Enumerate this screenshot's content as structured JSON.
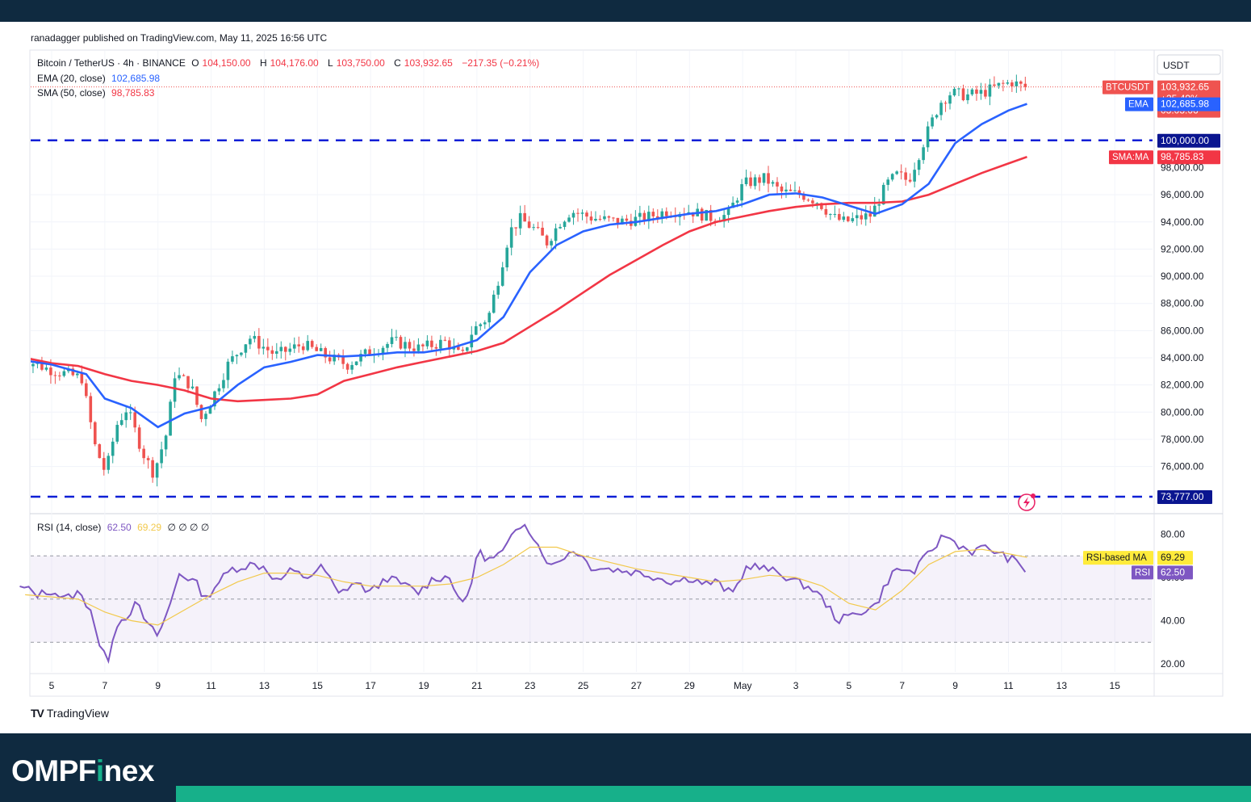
{
  "header": {
    "published_by": "ranadagger published on TradingView.com, May 11, 2025 16:56 UTC"
  },
  "legend": {
    "symbol": "Bitcoin / TetherUS · 4h · BINANCE",
    "open_label": "O",
    "open": "104,150.00",
    "high_label": "H",
    "high": "104,176.00",
    "low_label": "L",
    "low": "103,750.00",
    "close_label": "C",
    "close": "103,932.65",
    "change": "−217.35 (−0.21%)",
    "ema_label": "EMA (20, close)",
    "ema_value": "102,685.98",
    "sma_label": "SMA (50, close)",
    "sma_value": "98,785.83",
    "rsi_label": "RSI (14, close)",
    "rsi_value": "62.50",
    "rsi_ma_value": "69.29",
    "rsi_extra": "∅ ∅ ∅ ∅"
  },
  "price_axis": {
    "currency_label": "USDT",
    "ticks": [
      "96,000.00",
      "94,000.00",
      "92,000.00",
      "90,000.00",
      "88,000.00",
      "86,000.00",
      "84,000.00",
      "82,000.00",
      "80,000.00",
      "78,000.00",
      "76,000.00"
    ],
    "tick_values": [
      96000,
      94000,
      92000,
      90000,
      88000,
      86000,
      84000,
      82000,
      80000,
      78000,
      76000
    ],
    "hidden_tick": "98,000.00",
    "symbol_tag": "BTCUSDT",
    "price_tag": "103,932.65",
    "change_tag": "+25.49%",
    "countdown_tag": "03:03:06",
    "ema_tag_label": "EMA",
    "ema_tag_value": "102,685.98",
    "level_100k": "100,000.00",
    "sma_tag_label": "SMA:MA",
    "sma_tag_value": "98,785.83",
    "level_73k": "73,777.00"
  },
  "rsi_axis": {
    "ticks": [
      "80.00",
      "40.00",
      "20.00"
    ],
    "tick_values": [
      80,
      40,
      20
    ],
    "hidden_tick": "60.00",
    "ma_tag_label": "RSI-based MA",
    "ma_tag_value": "69.29",
    "rsi_tag_label": "RSI",
    "rsi_tag_value": "62.50"
  },
  "time_axis": {
    "labels": [
      "5",
      "7",
      "9",
      "11",
      "13",
      "15",
      "17",
      "19",
      "21",
      "23",
      "25",
      "27",
      "29",
      "May",
      "3",
      "5",
      "7",
      "9",
      "11",
      "13",
      "15"
    ]
  },
  "colors": {
    "up": "#26a69a",
    "down": "#ef5350",
    "ema": "#2962ff",
    "sma": "#f23645",
    "level_line": "#0d1fd6",
    "rsi": "#7e57c2",
    "rsi_ma": "#f2c94c",
    "brand_bg": "#0f2a40",
    "brand_accent": "#17b08a"
  },
  "chart_data": {
    "type": "candlestick",
    "title": "Bitcoin / TetherUS · 4h · BINANCE",
    "timeframe": "4h",
    "x_labels": [
      "5",
      "7",
      "9",
      "11",
      "13",
      "15",
      "17",
      "19",
      "21",
      "23",
      "25",
      "27",
      "29",
      "May",
      "3",
      "5",
      "7",
      "9",
      "11",
      "13",
      "15"
    ],
    "ohlc_last": {
      "open": 104150.0,
      "high": 104176.0,
      "low": 103750.0,
      "close": 103932.65
    },
    "price_anchors": [
      {
        "day": 4.0,
        "price": 84000
      },
      {
        "day": 5.0,
        "price": 83200
      },
      {
        "day": 6.3,
        "price": 82500
      },
      {
        "day": 6.8,
        "price": 77500
      },
      {
        "day": 7.2,
        "price": 75500
      },
      {
        "day": 7.6,
        "price": 79000
      },
      {
        "day": 8.0,
        "price": 80300
      },
      {
        "day": 8.6,
        "price": 77000
      },
      {
        "day": 9.0,
        "price": 75500
      },
      {
        "day": 9.5,
        "price": 78500
      },
      {
        "day": 9.8,
        "price": 82800
      },
      {
        "day": 10.4,
        "price": 82000
      },
      {
        "day": 10.8,
        "price": 79500
      },
      {
        "day": 11.2,
        "price": 81000
      },
      {
        "day": 11.8,
        "price": 83500
      },
      {
        "day": 12.6,
        "price": 85500
      },
      {
        "day": 13.6,
        "price": 84200
      },
      {
        "day": 14.6,
        "price": 85000
      },
      {
        "day": 15.6,
        "price": 84000
      },
      {
        "day": 16.3,
        "price": 83500
      },
      {
        "day": 17.0,
        "price": 84300
      },
      {
        "day": 18.0,
        "price": 85200
      },
      {
        "day": 19.0,
        "price": 84700
      },
      {
        "day": 20.0,
        "price": 85200
      },
      {
        "day": 20.6,
        "price": 84000
      },
      {
        "day": 21.0,
        "price": 86000
      },
      {
        "day": 21.6,
        "price": 87000
      },
      {
        "day": 22.0,
        "price": 90000
      },
      {
        "day": 22.4,
        "price": 93300
      },
      {
        "day": 22.8,
        "price": 94200
      },
      {
        "day": 23.3,
        "price": 93500
      },
      {
        "day": 23.8,
        "price": 92500
      },
      {
        "day": 24.3,
        "price": 94000
      },
      {
        "day": 24.7,
        "price": 94800
      },
      {
        "day": 25.5,
        "price": 94300
      },
      {
        "day": 26.5,
        "price": 94000
      },
      {
        "day": 27.5,
        "price": 94300
      },
      {
        "day": 28.3,
        "price": 94800
      },
      {
        "day": 29.2,
        "price": 94800
      },
      {
        "day": 30.0,
        "price": 94300
      },
      {
        "day": 30.6,
        "price": 94500
      },
      {
        "day": 31.2,
        "price": 96800
      },
      {
        "day": 32.0,
        "price": 97200
      },
      {
        "day": 32.6,
        "price": 96200
      },
      {
        "day": 33.4,
        "price": 96000
      },
      {
        "day": 34.0,
        "price": 95500
      },
      {
        "day": 34.6,
        "price": 94300
      },
      {
        "day": 35.0,
        "price": 94000
      },
      {
        "day": 35.6,
        "price": 94300
      },
      {
        "day": 36.0,
        "price": 94500
      },
      {
        "day": 36.6,
        "price": 96800
      },
      {
        "day": 37.0,
        "price": 97500
      },
      {
        "day": 37.4,
        "price": 97000
      },
      {
        "day": 37.8,
        "price": 99000
      },
      {
        "day": 38.2,
        "price": 101000
      },
      {
        "day": 38.6,
        "price": 102800
      },
      {
        "day": 39.0,
        "price": 103500
      },
      {
        "day": 39.6,
        "price": 103300
      },
      {
        "day": 40.2,
        "price": 103500
      },
      {
        "day": 40.8,
        "price": 104000
      },
      {
        "day": 41.3,
        "price": 104300
      },
      {
        "day": 41.7,
        "price": 103932
      }
    ],
    "ema_20": [
      {
        "day": 4.0,
        "price": 83800
      },
      {
        "day": 5.0,
        "price": 83500
      },
      {
        "day": 6.3,
        "price": 82800
      },
      {
        "day": 7.0,
        "price": 81000
      },
      {
        "day": 8.0,
        "price": 80300
      },
      {
        "day": 9.0,
        "price": 78900
      },
      {
        "day": 10.0,
        "price": 79900
      },
      {
        "day": 11.0,
        "price": 80400
      },
      {
        "day": 12.0,
        "price": 82000
      },
      {
        "day": 13.0,
        "price": 83300
      },
      {
        "day": 14.0,
        "price": 83700
      },
      {
        "day": 15.0,
        "price": 84200
      },
      {
        "day": 16.0,
        "price": 84100
      },
      {
        "day": 17.0,
        "price": 84200
      },
      {
        "day": 18.0,
        "price": 84400
      },
      {
        "day": 19.0,
        "price": 84400
      },
      {
        "day": 20.0,
        "price": 84700
      },
      {
        "day": 21.0,
        "price": 85300
      },
      {
        "day": 22.0,
        "price": 87000
      },
      {
        "day": 23.0,
        "price": 90300
      },
      {
        "day": 24.0,
        "price": 92300
      },
      {
        "day": 25.0,
        "price": 93300
      },
      {
        "day": 26.0,
        "price": 93800
      },
      {
        "day": 27.0,
        "price": 94000
      },
      {
        "day": 28.0,
        "price": 94300
      },
      {
        "day": 29.0,
        "price": 94600
      },
      {
        "day": 30.0,
        "price": 94800
      },
      {
        "day": 31.0,
        "price": 95300
      },
      {
        "day": 32.0,
        "price": 96000
      },
      {
        "day": 33.0,
        "price": 96100
      },
      {
        "day": 34.0,
        "price": 95800
      },
      {
        "day": 35.0,
        "price": 95200
      },
      {
        "day": 36.0,
        "price": 94600
      },
      {
        "day": 37.0,
        "price": 95300
      },
      {
        "day": 38.0,
        "price": 96800
      },
      {
        "day": 39.0,
        "price": 99800
      },
      {
        "day": 40.0,
        "price": 101200
      },
      {
        "day": 41.0,
        "price": 102200
      },
      {
        "day": 41.7,
        "price": 102686
      }
    ],
    "sma_50": [
      {
        "day": 4.0,
        "price": 84000
      },
      {
        "day": 5.0,
        "price": 83600
      },
      {
        "day": 6.0,
        "price": 83400
      },
      {
        "day": 7.0,
        "price": 82800
      },
      {
        "day": 8.0,
        "price": 82300
      },
      {
        "day": 9.0,
        "price": 82000
      },
      {
        "day": 10.0,
        "price": 81600
      },
      {
        "day": 11.0,
        "price": 81000
      },
      {
        "day": 12.0,
        "price": 80800
      },
      {
        "day": 13.0,
        "price": 80900
      },
      {
        "day": 14.0,
        "price": 81000
      },
      {
        "day": 15.0,
        "price": 81300
      },
      {
        "day": 16.0,
        "price": 82300
      },
      {
        "day": 17.0,
        "price": 82800
      },
      {
        "day": 18.0,
        "price": 83300
      },
      {
        "day": 19.0,
        "price": 83700
      },
      {
        "day": 20.0,
        "price": 84100
      },
      {
        "day": 21.0,
        "price": 84500
      },
      {
        "day": 22.0,
        "price": 85100
      },
      {
        "day": 23.0,
        "price": 86300
      },
      {
        "day": 24.0,
        "price": 87500
      },
      {
        "day": 25.0,
        "price": 88800
      },
      {
        "day": 26.0,
        "price": 90100
      },
      {
        "day": 27.0,
        "price": 91200
      },
      {
        "day": 28.0,
        "price": 92300
      },
      {
        "day": 29.0,
        "price": 93300
      },
      {
        "day": 30.0,
        "price": 94000
      },
      {
        "day": 31.0,
        "price": 94400
      },
      {
        "day": 32.0,
        "price": 94800
      },
      {
        "day": 33.0,
        "price": 95100
      },
      {
        "day": 34.0,
        "price": 95300
      },
      {
        "day": 35.0,
        "price": 95400
      },
      {
        "day": 36.0,
        "price": 95400
      },
      {
        "day": 37.0,
        "price": 95500
      },
      {
        "day": 38.0,
        "price": 96000
      },
      {
        "day": 39.0,
        "price": 96800
      },
      {
        "day": 40.0,
        "price": 97600
      },
      {
        "day": 41.0,
        "price": 98300
      },
      {
        "day": 41.7,
        "price": 98786
      }
    ],
    "horizontal_levels": [
      100000,
      73777
    ],
    "rsi_anchors": [
      {
        "day": 4.0,
        "val": 55
      },
      {
        "day": 4.5,
        "val": 52
      },
      {
        "day": 5.0,
        "val": 54
      },
      {
        "day": 5.5,
        "val": 50
      },
      {
        "day": 6.0,
        "val": 53
      },
      {
        "day": 6.5,
        "val": 45
      },
      {
        "day": 6.8,
        "val": 28
      },
      {
        "day": 7.1,
        "val": 21
      },
      {
        "day": 7.4,
        "val": 38
      },
      {
        "day": 7.8,
        "val": 42
      },
      {
        "day": 8.2,
        "val": 48
      },
      {
        "day": 8.6,
        "val": 38
      },
      {
        "day": 9.0,
        "val": 33
      },
      {
        "day": 9.4,
        "val": 45
      },
      {
        "day": 9.8,
        "val": 62
      },
      {
        "day": 10.4,
        "val": 58
      },
      {
        "day": 10.8,
        "val": 50
      },
      {
        "day": 11.2,
        "val": 57
      },
      {
        "day": 11.8,
        "val": 64
      },
      {
        "day": 12.5,
        "val": 66
      },
      {
        "day": 13.0,
        "val": 65
      },
      {
        "day": 13.5,
        "val": 58
      },
      {
        "day": 14.0,
        "val": 63
      },
      {
        "day": 14.6,
        "val": 60
      },
      {
        "day": 15.2,
        "val": 65
      },
      {
        "day": 15.8,
        "val": 52
      },
      {
        "day": 16.4,
        "val": 58
      },
      {
        "day": 17.0,
        "val": 53
      },
      {
        "day": 17.6,
        "val": 60
      },
      {
        "day": 18.2,
        "val": 57
      },
      {
        "day": 18.8,
        "val": 53
      },
      {
        "day": 19.4,
        "val": 60
      },
      {
        "day": 20.0,
        "val": 60
      },
      {
        "day": 20.5,
        "val": 46
      },
      {
        "day": 20.8,
        "val": 58
      },
      {
        "day": 21.0,
        "val": 72
      },
      {
        "day": 21.5,
        "val": 68
      },
      {
        "day": 22.0,
        "val": 72
      },
      {
        "day": 22.5,
        "val": 82
      },
      {
        "day": 22.8,
        "val": 86
      },
      {
        "day": 23.3,
        "val": 75
      },
      {
        "day": 23.8,
        "val": 65
      },
      {
        "day": 24.3,
        "val": 70
      },
      {
        "day": 24.7,
        "val": 73
      },
      {
        "day": 25.3,
        "val": 65
      },
      {
        "day": 26.0,
        "val": 64
      },
      {
        "day": 26.6,
        "val": 63
      },
      {
        "day": 27.2,
        "val": 62
      },
      {
        "day": 27.8,
        "val": 60
      },
      {
        "day": 28.4,
        "val": 58
      },
      {
        "day": 29.0,
        "val": 60
      },
      {
        "day": 29.6,
        "val": 57
      },
      {
        "day": 30.0,
        "val": 58
      },
      {
        "day": 30.6,
        "val": 52
      },
      {
        "day": 31.2,
        "val": 66
      },
      {
        "day": 31.8,
        "val": 64
      },
      {
        "day": 32.4,
        "val": 62
      },
      {
        "day": 33.0,
        "val": 58
      },
      {
        "day": 33.6,
        "val": 55
      },
      {
        "day": 34.0,
        "val": 50
      },
      {
        "day": 34.6,
        "val": 40
      },
      {
        "day": 35.0,
        "val": 42
      },
      {
        "day": 35.6,
        "val": 45
      },
      {
        "day": 36.0,
        "val": 47
      },
      {
        "day": 36.6,
        "val": 62
      },
      {
        "day": 37.0,
        "val": 64
      },
      {
        "day": 37.4,
        "val": 62
      },
      {
        "day": 37.8,
        "val": 68
      },
      {
        "day": 38.2,
        "val": 74
      },
      {
        "day": 38.6,
        "val": 80
      },
      {
        "day": 39.0,
        "val": 76
      },
      {
        "day": 39.6,
        "val": 72
      },
      {
        "day": 40.2,
        "val": 74
      },
      {
        "day": 40.8,
        "val": 70
      },
      {
        "day": 41.2,
        "val": 68
      },
      {
        "day": 41.7,
        "val": 62.5
      }
    ],
    "rsi_ma_anchors": [
      {
        "day": 4.0,
        "val": 52
      },
      {
        "day": 5.0,
        "val": 51
      },
      {
        "day": 6.0,
        "val": 50
      },
      {
        "day": 7.0,
        "val": 44
      },
      {
        "day": 8.0,
        "val": 40
      },
      {
        "day": 9.0,
        "val": 38
      },
      {
        "day": 10.0,
        "val": 45
      },
      {
        "day": 11.0,
        "val": 52
      },
      {
        "day": 12.0,
        "val": 58
      },
      {
        "day": 13.0,
        "val": 62
      },
      {
        "day": 14.0,
        "val": 62
      },
      {
        "day": 15.0,
        "val": 61
      },
      {
        "day": 16.0,
        "val": 58
      },
      {
        "day": 17.0,
        "val": 56
      },
      {
        "day": 18.0,
        "val": 56
      },
      {
        "day": 19.0,
        "val": 56
      },
      {
        "day": 20.0,
        "val": 57
      },
      {
        "day": 21.0,
        "val": 60
      },
      {
        "day": 22.0,
        "val": 66
      },
      {
        "day": 23.0,
        "val": 74
      },
      {
        "day": 24.0,
        "val": 74
      },
      {
        "day": 25.0,
        "val": 70
      },
      {
        "day": 26.0,
        "val": 67
      },
      {
        "day": 27.0,
        "val": 64
      },
      {
        "day": 28.0,
        "val": 62
      },
      {
        "day": 29.0,
        "val": 60
      },
      {
        "day": 30.0,
        "val": 58
      },
      {
        "day": 31.0,
        "val": 59
      },
      {
        "day": 32.0,
        "val": 61
      },
      {
        "day": 33.0,
        "val": 60
      },
      {
        "day": 34.0,
        "val": 56
      },
      {
        "day": 35.0,
        "val": 48
      },
      {
        "day": 36.0,
        "val": 45
      },
      {
        "day": 37.0,
        "val": 54
      },
      {
        "day": 38.0,
        "val": 66
      },
      {
        "day": 39.0,
        "val": 72
      },
      {
        "day": 40.0,
        "val": 73
      },
      {
        "day": 41.0,
        "val": 71
      },
      {
        "day": 41.7,
        "val": 69.29
      }
    ],
    "rsi_bands": {
      "upper": 70,
      "middle": 50,
      "lower": 30
    },
    "ylim": [
      73000,
      106500
    ],
    "rsi_ylim": [
      15,
      92
    ]
  },
  "brand": {
    "name_prefix": "OMPF",
    "name_accent": "i",
    "name_suffix": "nex",
    "tv_logo_mark": "TV",
    "tv_logo_text": "TradingView"
  }
}
